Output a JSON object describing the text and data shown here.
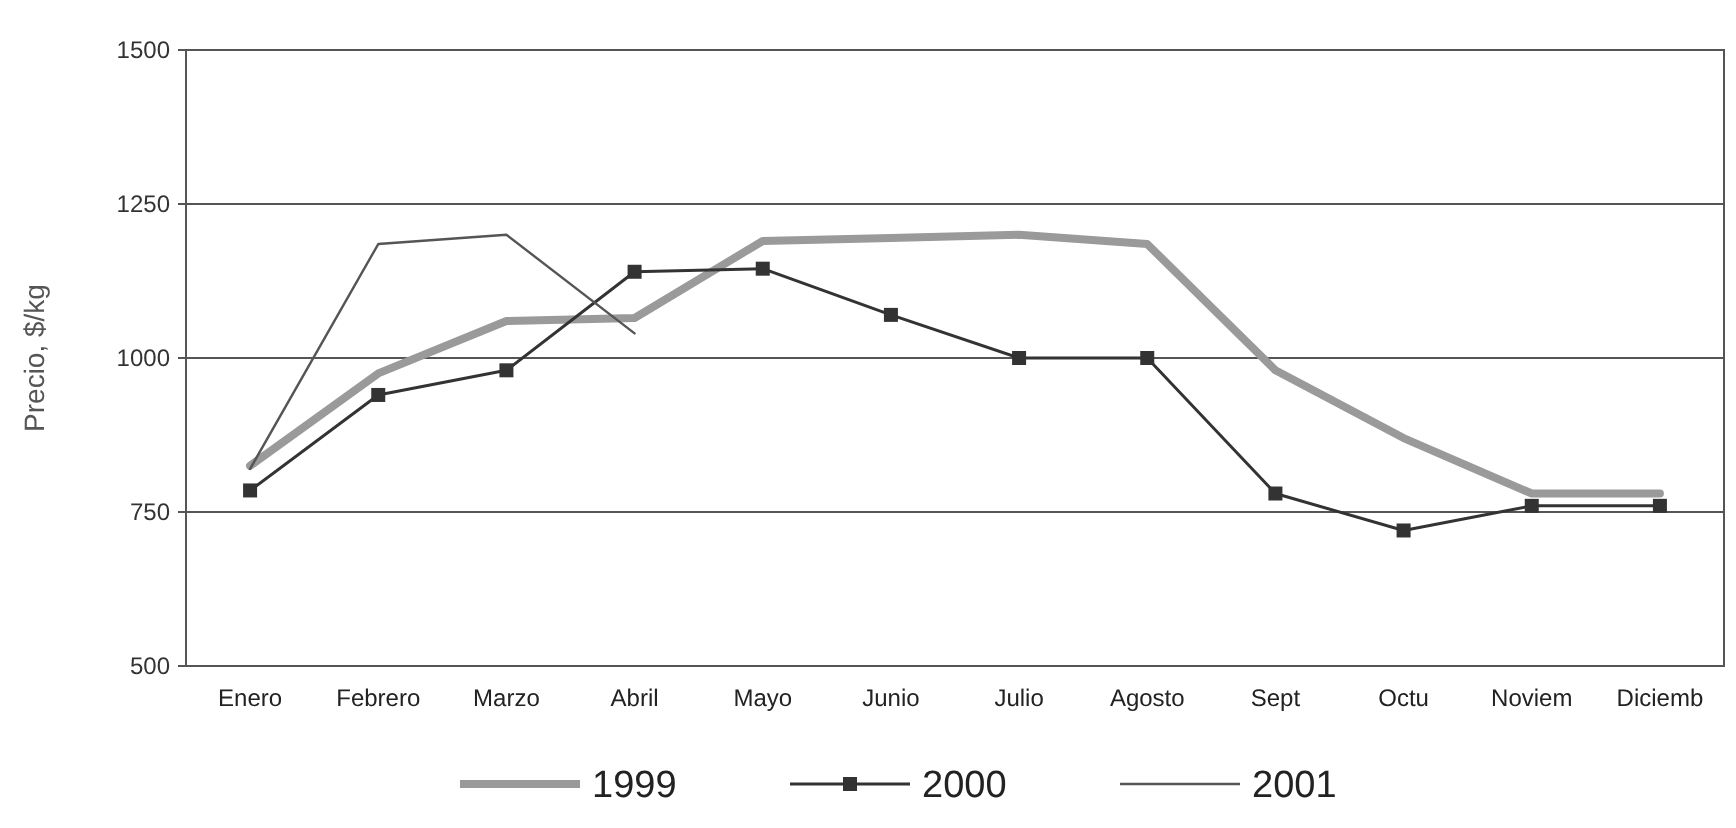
{
  "chart_data": {
    "type": "line",
    "ylabel": "Precio, $/kg",
    "categories": [
      "Enero",
      "Febrero",
      "Marzo",
      "Abril",
      "Mayo",
      "Junio",
      "Julio",
      "Agosto",
      "Sept",
      "Octu",
      "Noviem",
      "Diciemb"
    ],
    "series": [
      {
        "name": "1999",
        "color": "#9a9a9a",
        "marker": "none",
        "values": [
          825,
          975,
          1060,
          1065,
          1190,
          1195,
          1200,
          1185,
          980,
          870,
          780,
          780
        ]
      },
      {
        "name": "2000",
        "color": "#333333",
        "marker": "square",
        "values": [
          785,
          940,
          980,
          1140,
          1145,
          1070,
          1000,
          1000,
          780,
          720,
          760,
          760
        ]
      },
      {
        "name": "2001",
        "color": "#555555",
        "marker": "none",
        "values": [
          820,
          1185,
          1200,
          1040,
          null,
          null,
          null,
          null,
          null,
          null,
          null,
          null
        ]
      }
    ],
    "ylim": [
      500,
      1500
    ],
    "yticks": [
      500,
      750,
      1000,
      1250,
      1500
    ],
    "grid": "y",
    "legend": "bottom",
    "line_style": "solid"
  }
}
